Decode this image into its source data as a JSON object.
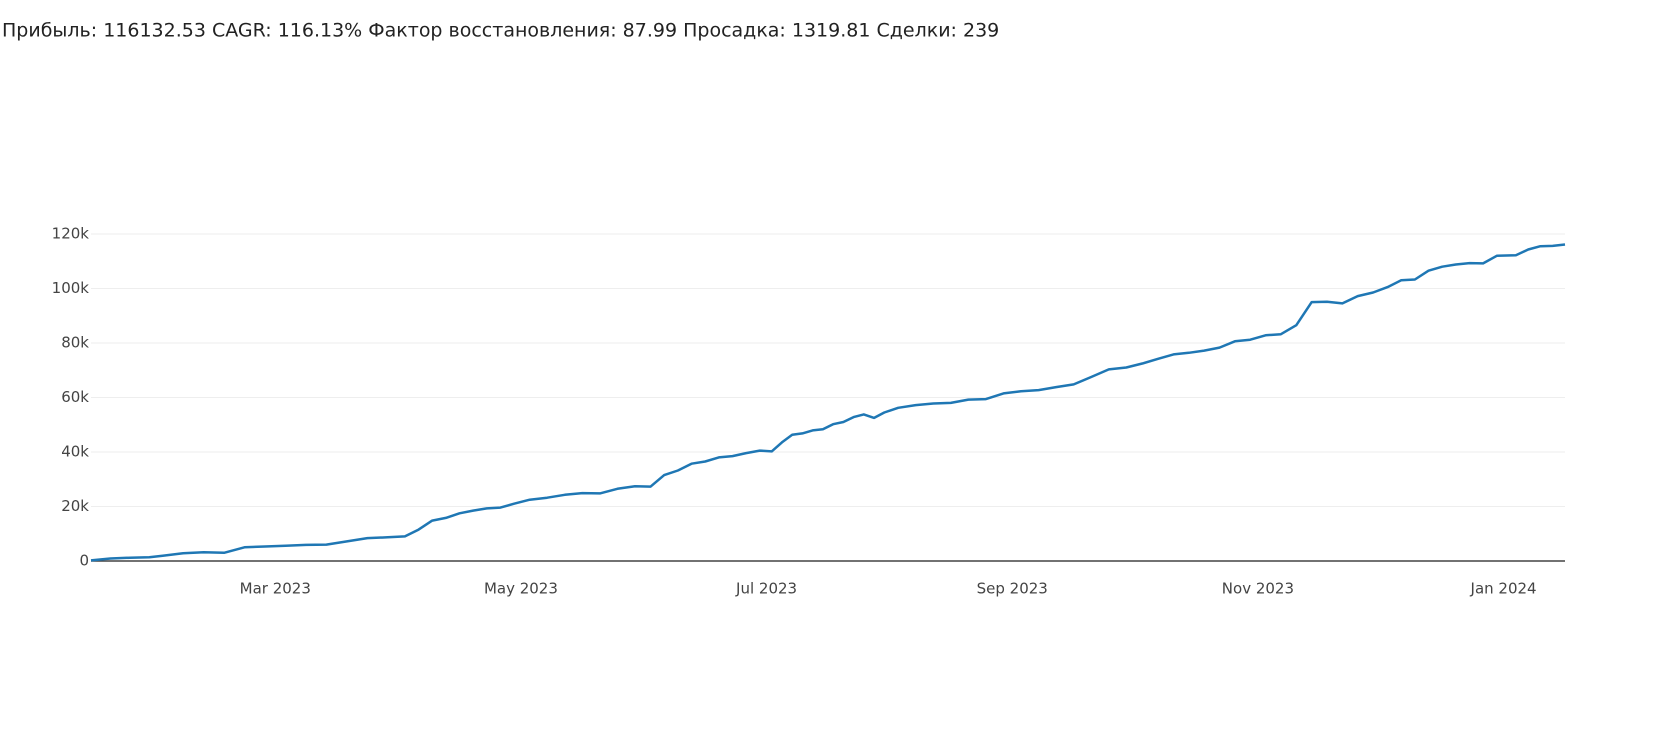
{
  "chart_data": {
    "type": "line",
    "title": "Прибыль: 116132.53 CAGR: 116.13% Фактор восстановления: 87.99 Просадка: 1319.81 Сделки: 239",
    "x": [
      "2023-01",
      "2023-01",
      "2023-01",
      "2023-01",
      "2023-02",
      "2023-02",
      "2023-02",
      "2023-02",
      "2023-02",
      "2023-02",
      "2023-03",
      "2023-03",
      "2023-03",
      "2023-03",
      "2023-03",
      "2023-03",
      "2023-04",
      "2023-04",
      "2023-04",
      "2023-04",
      "2023-04",
      "2023-04",
      "2023-04",
      "2023-04",
      "2023-04",
      "2023-05",
      "2023-05",
      "2023-05",
      "2023-05",
      "2023-05",
      "2023-05",
      "2023-05",
      "2023-06",
      "2023-06",
      "2023-06",
      "2023-06",
      "2023-06",
      "2023-06",
      "2023-06",
      "2023-06",
      "2023-06",
      "2023-07",
      "2023-07",
      "2023-07",
      "2023-07",
      "2023-07",
      "2023-07",
      "2023-07",
      "2023-07",
      "2023-07",
      "2023-07",
      "2023-07",
      "2023-07",
      "2023-08",
      "2023-08",
      "2023-08",
      "2023-08",
      "2023-08",
      "2023-08",
      "2023-08",
      "2023-09",
      "2023-09",
      "2023-09",
      "2023-09",
      "2023-09",
      "2023-09",
      "2023-09",
      "2023-10",
      "2023-10",
      "2023-10",
      "2023-10",
      "2023-10",
      "2023-10",
      "2023-10",
      "2023-10",
      "2023-11",
      "2023-11",
      "2023-11",
      "2023-11",
      "2023-11",
      "2023-11",
      "2023-11",
      "2023-11",
      "2023-12",
      "2023-12",
      "2023-12",
      "2023-12",
      "2023-12",
      "2023-12",
      "2023-12",
      "2023-12",
      "2023-12",
      "2024-01",
      "2024-01",
      "2024-01",
      "2024-01",
      "2024-01"
    ],
    "series": [
      {
        "color": "#1f77b4",
        "values": [
          200,
          900,
          1200,
          1400,
          1900,
          2800,
          3200,
          3000,
          5000,
          5300,
          5600,
          5900,
          6000,
          7200,
          8400,
          8700,
          9000,
          11500,
          14800,
          15800,
          17500,
          18500,
          19300,
          19600,
          21000,
          22500,
          23200,
          24300,
          24900,
          24800,
          26500,
          27400,
          27300,
          31500,
          33200,
          35700,
          36500,
          38000,
          38500,
          39600,
          40500,
          40200,
          43500,
          46300,
          46800,
          47900,
          48300,
          50200,
          51000,
          52800,
          53800,
          52500,
          54500,
          56200,
          57200,
          57800,
          58000,
          59200,
          59400,
          61500,
          62300,
          62700,
          63800,
          64800,
          67500,
          70300,
          71000,
          72500,
          74200,
          75800,
          76400,
          77200,
          78300,
          80600,
          81200,
          82800,
          83200,
          86500,
          95000,
          95100,
          94500,
          97200,
          98500,
          100500,
          103000,
          103300,
          106500,
          108000,
          108800,
          109300,
          109200,
          112000,
          112200,
          114300,
          115500,
          115600,
          116132
        ]
      }
    ],
    "xlim": [
      "2023-01",
      "2024-01"
    ],
    "xticks": [
      {
        "value": "2023-03",
        "label": "Mar 2023"
      },
      {
        "value": "2023-05",
        "label": "May 2023"
      },
      {
        "value": "2023-07",
        "label": "Jul 2023"
      },
      {
        "value": "2023-09",
        "label": "Sep 2023"
      },
      {
        "value": "2023-11",
        "label": "Nov 2023"
      },
      {
        "value": "2024-01",
        "label": "Jan 2024"
      }
    ],
    "ylim": [
      -5000,
      122000
    ],
    "yticks": [
      0,
      {
        "value": 20000,
        "label": "20k"
      },
      {
        "value": 40000,
        "label": "40k"
      },
      {
        "value": 60000,
        "label": "60k"
      },
      {
        "value": 80000,
        "label": "80k"
      },
      {
        "value": 100000,
        "label": "100k"
      },
      {
        "value": 120000,
        "label": "120k"
      }
    ],
    "grid": true
  }
}
